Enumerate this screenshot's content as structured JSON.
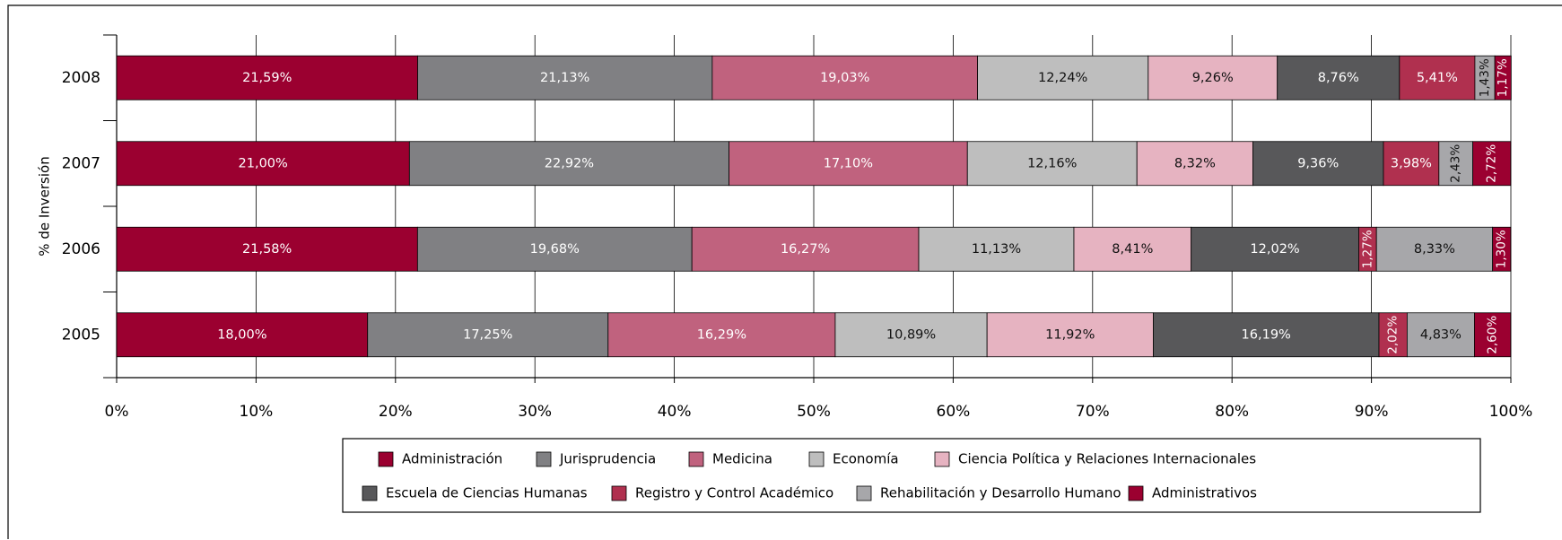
{
  "chart_data": {
    "type": "stacked_barh",
    "ylabel": "% de Inversión",
    "categories": [
      "2008",
      "2007",
      "2006",
      "2005"
    ],
    "xlim": [
      0,
      100
    ],
    "xticks": [
      {
        "value": 0,
        "label": "0%"
      },
      {
        "value": 10,
        "label": "10%"
      },
      {
        "value": 20,
        "label": "20%"
      },
      {
        "value": 30,
        "label": "30%"
      },
      {
        "value": 40,
        "label": "40%"
      },
      {
        "value": 50,
        "label": "50%"
      },
      {
        "value": 60,
        "label": "60%"
      },
      {
        "value": 70,
        "label": "70%"
      },
      {
        "value": 80,
        "label": "80%"
      },
      {
        "value": 90,
        "label": "90%"
      },
      {
        "value": 100,
        "label": "100%"
      }
    ],
    "grid": true,
    "series": [
      {
        "name": "Administración",
        "color": "#9b0030",
        "values": [
          21.59,
          21.0,
          21.58,
          18.0
        ],
        "value_labels": [
          "21,59%",
          "21,00%",
          "21,58%",
          "18,00%"
        ]
      },
      {
        "name": "Jurisprudencia",
        "color": "#808083",
        "values": [
          21.13,
          22.92,
          19.68,
          17.25
        ],
        "value_labels": [
          "21,13%",
          "22,92%",
          "19,68%",
          "17,25%"
        ]
      },
      {
        "name": "Medicina",
        "color": "#c0627e",
        "values": [
          19.03,
          17.1,
          16.27,
          16.29
        ],
        "value_labels": [
          "19,03%",
          "17,10%",
          "16,27%",
          "16,29%"
        ]
      },
      {
        "name": "Economía",
        "color": "#bebebe",
        "values": [
          12.24,
          12.16,
          11.13,
          10.89
        ],
        "value_labels": [
          "12,24%",
          "12,16%",
          "11,13%",
          "10,89%"
        ]
      },
      {
        "name": "Ciencia Política y Relaciones Internacionales",
        "color": "#e6b3c1",
        "values": [
          9.26,
          8.32,
          8.41,
          11.92
        ],
        "value_labels": [
          "9,26%",
          "8,32%",
          "8,41%",
          "11,92%"
        ]
      },
      {
        "name": "Escuela de Ciencias Humanas",
        "color": "#58585a",
        "values": [
          8.76,
          9.36,
          12.02,
          16.19
        ],
        "value_labels": [
          "8,76%",
          "9,36%",
          "12,02%",
          "16,19%"
        ]
      },
      {
        "name": "Registro y Control Académico",
        "color": "#b0304f",
        "values": [
          5.41,
          3.98,
          1.27,
          2.02
        ],
        "value_labels": [
          "5,41%",
          "3,98%",
          "1,27%",
          "2,02%"
        ]
      },
      {
        "name": "Rehabilitación y Desarrollo Humano",
        "color": "#a7a7aa",
        "values": [
          1.43,
          2.43,
          8.33,
          4.83
        ],
        "value_labels": [
          "1,43%",
          "2,43%",
          "8,33%",
          "4,83%"
        ]
      },
      {
        "name": "Administrativos",
        "color": "#9b0030",
        "values": [
          1.17,
          2.72,
          1.3,
          2.6
        ],
        "value_labels": [
          "1,17%",
          "2,72%",
          "1,30%",
          "2,60%"
        ]
      }
    ]
  }
}
